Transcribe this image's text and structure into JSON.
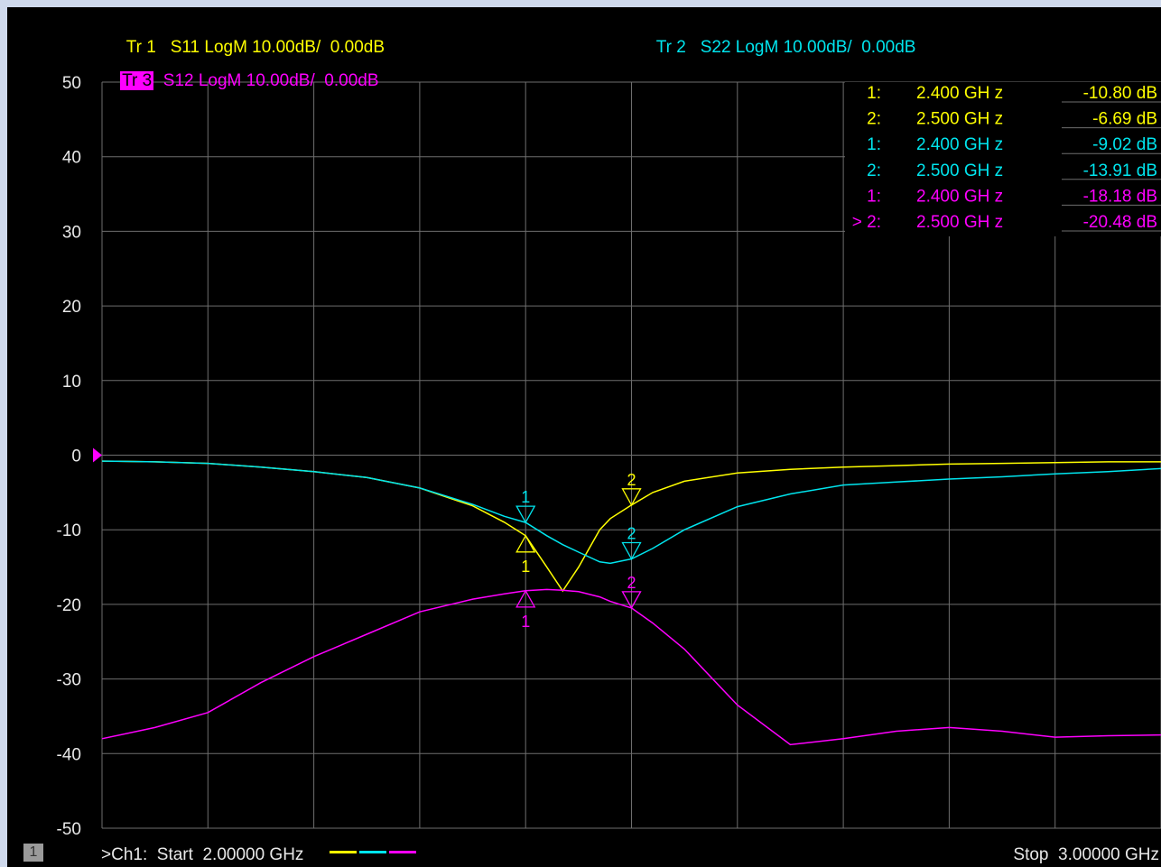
{
  "header": {
    "tr1": {
      "label": "Tr 1",
      "text": "S11 LogM 10.00dB/  0.00dB"
    },
    "tr2": {
      "label": "Tr 2",
      "text": "S22 LogM 10.00dB/  0.00dB"
    },
    "tr3": {
      "label": "Tr 3",
      "text": "S12 LogM 10.00dB/  0.00dB"
    }
  },
  "colors": {
    "s11": "#ffff00",
    "s22": "#00e5ee",
    "s12": "#ff00ff",
    "grid": "#6e6e6e",
    "background": "#000000"
  },
  "marker_table": [
    {
      "idx": "1:",
      "freq": "2.400  GH z",
      "value": "-10.80 dB",
      "trace": "s11"
    },
    {
      "idx": "2:",
      "freq": "2.500  GH z",
      "value": "-6.69 dB",
      "trace": "s11"
    },
    {
      "idx": "1:",
      "freq": "2.400  GH z",
      "value": "-9.02 dB",
      "trace": "s22"
    },
    {
      "idx": "2:",
      "freq": "2.500  GH z",
      "value": "-13.91 dB",
      "trace": "s22"
    },
    {
      "idx": "1:",
      "freq": "2.400  GH z",
      "value": "-18.18 dB",
      "trace": "s12"
    },
    {
      "idx": "> 2:",
      "freq": "2.500  GH z",
      "value": "-20.48 dB",
      "trace": "s12"
    }
  ],
  "footer": {
    "channel_number": "1",
    "start": ">Ch1:  Start  2.00000 GHz",
    "stop": "Stop  3.00000 GHz"
  },
  "chart_data": {
    "type": "line",
    "x_unit": "GHz",
    "xlim": [
      2.0,
      3.0
    ],
    "ylim": [
      -50,
      50
    ],
    "yticks": [
      50,
      40,
      30,
      20,
      10,
      0,
      -10,
      -20,
      -30,
      -40,
      -50
    ],
    "x_divisions": 10,
    "grid": true,
    "reference_level": 0,
    "x": [
      2.0,
      2.05,
      2.1,
      2.15,
      2.2,
      2.25,
      2.3,
      2.35,
      2.38,
      2.4,
      2.42,
      2.435,
      2.45,
      2.47,
      2.48,
      2.5,
      2.52,
      2.55,
      2.6,
      2.65,
      2.7,
      2.75,
      2.8,
      2.85,
      2.9,
      2.95,
      3.0
    ],
    "series": [
      {
        "name": "S11",
        "color": "#ffff00",
        "values": [
          -0.8,
          -0.9,
          -1.1,
          -1.6,
          -2.2,
          -3.0,
          -4.4,
          -6.8,
          -9.0,
          -10.8,
          -15.0,
          -18.2,
          -15.0,
          -10.0,
          -8.5,
          -6.69,
          -5.0,
          -3.5,
          -2.4,
          -1.9,
          -1.6,
          -1.4,
          -1.2,
          -1.1,
          -1.0,
          -0.9,
          -0.9
        ]
      },
      {
        "name": "S22",
        "color": "#00e5ee",
        "values": [
          -0.8,
          -0.9,
          -1.1,
          -1.6,
          -2.2,
          -3.0,
          -4.4,
          -6.6,
          -8.2,
          -9.02,
          -10.8,
          -12.0,
          -13.0,
          -14.3,
          -14.5,
          -13.91,
          -12.5,
          -10.0,
          -6.9,
          -5.2,
          -4.0,
          -3.6,
          -3.2,
          -2.9,
          -2.5,
          -2.2,
          -1.8
        ]
      },
      {
        "name": "S12",
        "color": "#ff00ff",
        "values": [
          -38.0,
          -36.5,
          -34.5,
          -30.5,
          -27.0,
          -24.0,
          -21.0,
          -19.3,
          -18.6,
          -18.18,
          -18.0,
          -18.1,
          -18.3,
          -19.0,
          -19.6,
          -20.48,
          -22.5,
          -26.0,
          -33.5,
          -38.8,
          -38.0,
          -37.0,
          -36.5,
          -37.0,
          -37.8,
          -37.6,
          -37.5
        ]
      }
    ],
    "markers": [
      {
        "trace": "S11",
        "label": "1",
        "x": 2.4,
        "y": -10.8
      },
      {
        "trace": "S11",
        "label": "2",
        "x": 2.5,
        "y": -6.69
      },
      {
        "trace": "S22",
        "label": "1",
        "x": 2.4,
        "y": -9.02
      },
      {
        "trace": "S22",
        "label": "2",
        "x": 2.5,
        "y": -13.91
      },
      {
        "trace": "S12",
        "label": "1",
        "x": 2.4,
        "y": -18.18
      },
      {
        "trace": "S12",
        "label": "2",
        "x": 2.5,
        "y": -20.48
      }
    ]
  }
}
